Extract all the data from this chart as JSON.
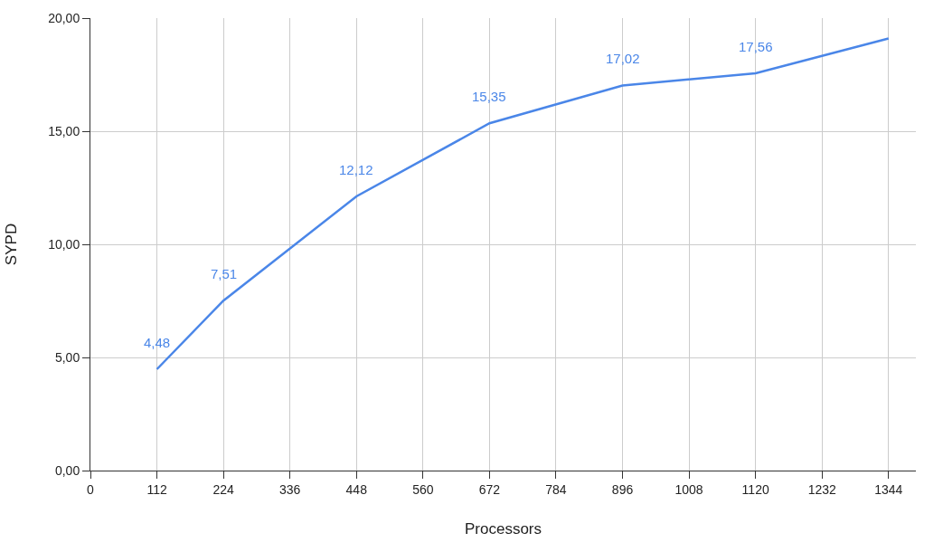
{
  "chart_data": {
    "type": "line",
    "xlabel": "Processors",
    "ylabel": "SYPD",
    "x": [
      112,
      224,
      448,
      672,
      896,
      1120,
      1344
    ],
    "series": [
      {
        "color": "#4a86e8",
        "values": [
          4.48,
          7.51,
          12.12,
          15.35,
          17.02,
          17.56,
          19.1
        ],
        "value_labels": [
          "4,48",
          "7,51",
          "12,12",
          "15,35",
          "17,02",
          "17,56",
          null
        ]
      }
    ],
    "xlim": [
      0,
      1390
    ],
    "xticks": [
      0,
      112,
      224,
      336,
      448,
      560,
      672,
      784,
      896,
      1008,
      1120,
      1232,
      1344
    ],
    "ylim": [
      0,
      20
    ],
    "yticks": [
      {
        "value": 0,
        "label": "0,00"
      },
      {
        "value": 5,
        "label": "5,00"
      },
      {
        "value": 10,
        "label": "10,00"
      },
      {
        "value": 15,
        "label": "15,00"
      },
      {
        "value": 20,
        "label": "20,00"
      }
    ],
    "grid": true,
    "marker": "none",
    "line_style": "solid"
  }
}
